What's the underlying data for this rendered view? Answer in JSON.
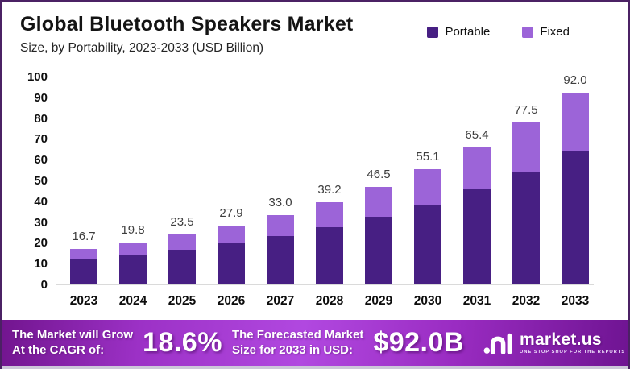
{
  "header": {
    "title": "Global Bluetooth Speakers Market",
    "subtitle": "Size, by Portability, 2023-2033 (USD Billion)"
  },
  "legend": [
    {
      "label": "Portable",
      "color": "#471f83"
    },
    {
      "label": "Fixed",
      "color": "#9c64d8"
    }
  ],
  "chart_data": {
    "type": "bar",
    "stacked": true,
    "title": "Global Bluetooth Speakers Market Size, by Portability, 2023-2033 (USD Billion)",
    "categories": [
      "2023",
      "2024",
      "2025",
      "2026",
      "2027",
      "2028",
      "2029",
      "2030",
      "2031",
      "2032",
      "2033"
    ],
    "series": [
      {
        "name": "Portable",
        "color": "#471f83",
        "values": [
          11.5,
          13.8,
          16.2,
          19.2,
          22.9,
          27.2,
          32.1,
          38.1,
          45.2,
          53.6,
          63.8
        ],
        "note": "values estimated from pixel heights (~69% of total)"
      },
      {
        "name": "Fixed",
        "color": "#9c64d8",
        "values": [
          5.2,
          6.0,
          7.3,
          8.7,
          10.1,
          12.0,
          14.4,
          17.0,
          20.2,
          23.9,
          28.2
        ],
        "note": "values estimated from pixel heights (~31% of total)"
      }
    ],
    "totals": [
      16.7,
      19.8,
      23.5,
      27.9,
      33.0,
      39.2,
      46.5,
      55.1,
      65.4,
      77.5,
      92.0
    ],
    "total_labels": [
      "16.7",
      "19.8",
      "23.5",
      "27.9",
      "33.0",
      "39.2",
      "46.5",
      "55.1",
      "65.4",
      "77.5",
      "92.0"
    ],
    "xlabel": "",
    "ylabel": "",
    "ylim": [
      0,
      100
    ],
    "yticks": [
      0,
      10,
      20,
      30,
      40,
      50,
      60,
      70,
      80,
      90,
      100
    ],
    "grid": false,
    "legend_position": "top-right"
  },
  "banner": {
    "cagr_label_line1": "The Market will Grow",
    "cagr_label_line2": "At the CAGR of:",
    "cagr_value": "18.6%",
    "forecast_label_line1": "The Forecasted Market",
    "forecast_label_line2": "Size for 2033 in USD:",
    "forecast_value": "$92.0B",
    "logo_name": "market.us",
    "logo_tagline": "ONE STOP SHOP FOR THE REPORTS"
  }
}
